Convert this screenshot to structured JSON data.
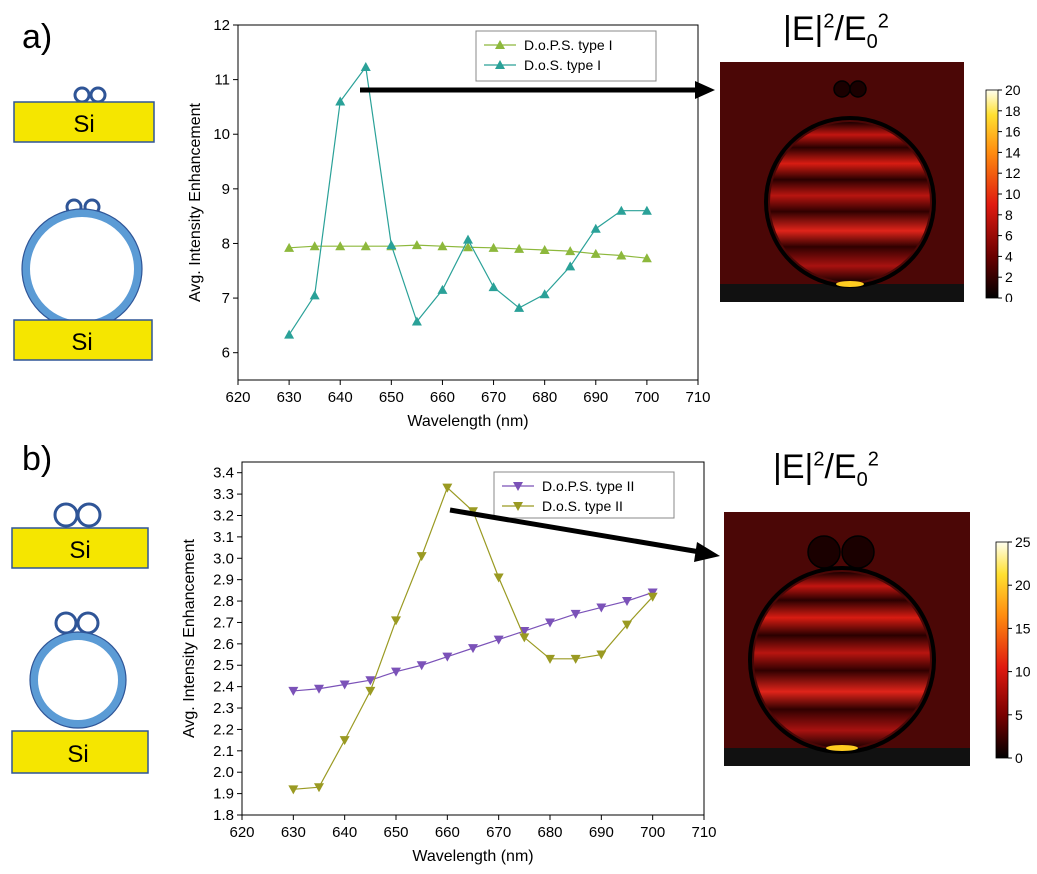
{
  "panels": [
    {
      "label": "a)",
      "substrate_label": "Si",
      "field_title": {
        "base": "|E|",
        "sup1": "2",
        "mid": "/E",
        "sub": "0",
        "sup2": "2"
      },
      "colorbar_ticks": [
        "0",
        "2",
        "4",
        "6",
        "8",
        "10",
        "12",
        "14",
        "16",
        "18",
        "20"
      ],
      "colorbar_max": 20
    },
    {
      "label": "b)",
      "substrate_label": "Si",
      "field_title": {
        "base": "|E|",
        "sup1": "2",
        "mid": "/E",
        "sub": "0",
        "sup2": "2"
      },
      "colorbar_ticks": [
        "0",
        "5",
        "10",
        "15",
        "20",
        "25"
      ],
      "colorbar_max": 25
    }
  ],
  "colors": {
    "substrate_fill": "#f5e600",
    "substrate_stroke": "#2f5597",
    "sphere_fill": "#5b9bd5",
    "type1_dops": "#8db83c",
    "type1_dos": "#2aa198",
    "type2_dops": "#7b52b8",
    "type2_dos": "#9a9a22"
  },
  "chart_data": [
    {
      "type": "line",
      "xlabel": "Wavelength (nm)",
      "ylabel": "Avg. Intensity Enhancement",
      "xlim": [
        620,
        710
      ],
      "ylim": [
        5.5,
        12
      ],
      "xticks": [
        620,
        630,
        640,
        650,
        660,
        670,
        680,
        690,
        700,
        710
      ],
      "yticks": [
        6,
        7,
        8,
        9,
        10,
        11,
        12
      ],
      "marker": "triangle-up",
      "legend_position": "top-right",
      "x": [
        630,
        635,
        640,
        645,
        650,
        655,
        660,
        665,
        670,
        675,
        680,
        685,
        690,
        695,
        700
      ],
      "series": [
        {
          "name": "D.o.P.S. type I",
          "color_key": "type1_dops",
          "values": [
            7.92,
            7.95,
            7.95,
            7.95,
            7.95,
            7.97,
            7.95,
            7.93,
            7.92,
            7.9,
            7.88,
            7.86,
            7.81,
            7.78,
            7.73
          ]
        },
        {
          "name": "D.o.S. type I",
          "color_key": "type1_dos",
          "values": [
            6.33,
            7.05,
            10.6,
            11.23,
            7.97,
            6.57,
            7.15,
            8.07,
            7.2,
            6.82,
            7.07,
            7.58,
            8.27,
            8.6,
            8.6
          ]
        }
      ]
    },
    {
      "type": "line",
      "xlabel": "Wavelength (nm)",
      "ylabel": "Avg. Intensity Enhancement",
      "xlim": [
        620,
        710
      ],
      "ylim": [
        1.8,
        3.45
      ],
      "xticks": [
        620,
        630,
        640,
        650,
        660,
        670,
        680,
        690,
        700,
        710
      ],
      "yticks": [
        1.8,
        1.9,
        2.0,
        2.1,
        2.2,
        2.3,
        2.4,
        2.5,
        2.6,
        2.7,
        2.8,
        2.9,
        3.0,
        3.1,
        3.2,
        3.3,
        3.4
      ],
      "marker": "triangle-down",
      "legend_position": "top-right",
      "x": [
        630,
        635,
        640,
        645,
        650,
        655,
        660,
        665,
        670,
        675,
        680,
        685,
        690,
        695,
        700
      ],
      "series": [
        {
          "name": "D.o.P.S. type II",
          "color_key": "type2_dops",
          "values": [
            2.38,
            2.39,
            2.41,
            2.43,
            2.47,
            2.5,
            2.54,
            2.58,
            2.62,
            2.66,
            2.7,
            2.74,
            2.77,
            2.8,
            2.84
          ]
        },
        {
          "name": "D.o.S. type II",
          "color_key": "type2_dos",
          "values": [
            1.92,
            1.93,
            2.15,
            2.38,
            2.71,
            3.01,
            3.33,
            3.22,
            2.91,
            2.63,
            2.53,
            2.53,
            2.55,
            2.69,
            2.82
          ]
        }
      ]
    }
  ]
}
